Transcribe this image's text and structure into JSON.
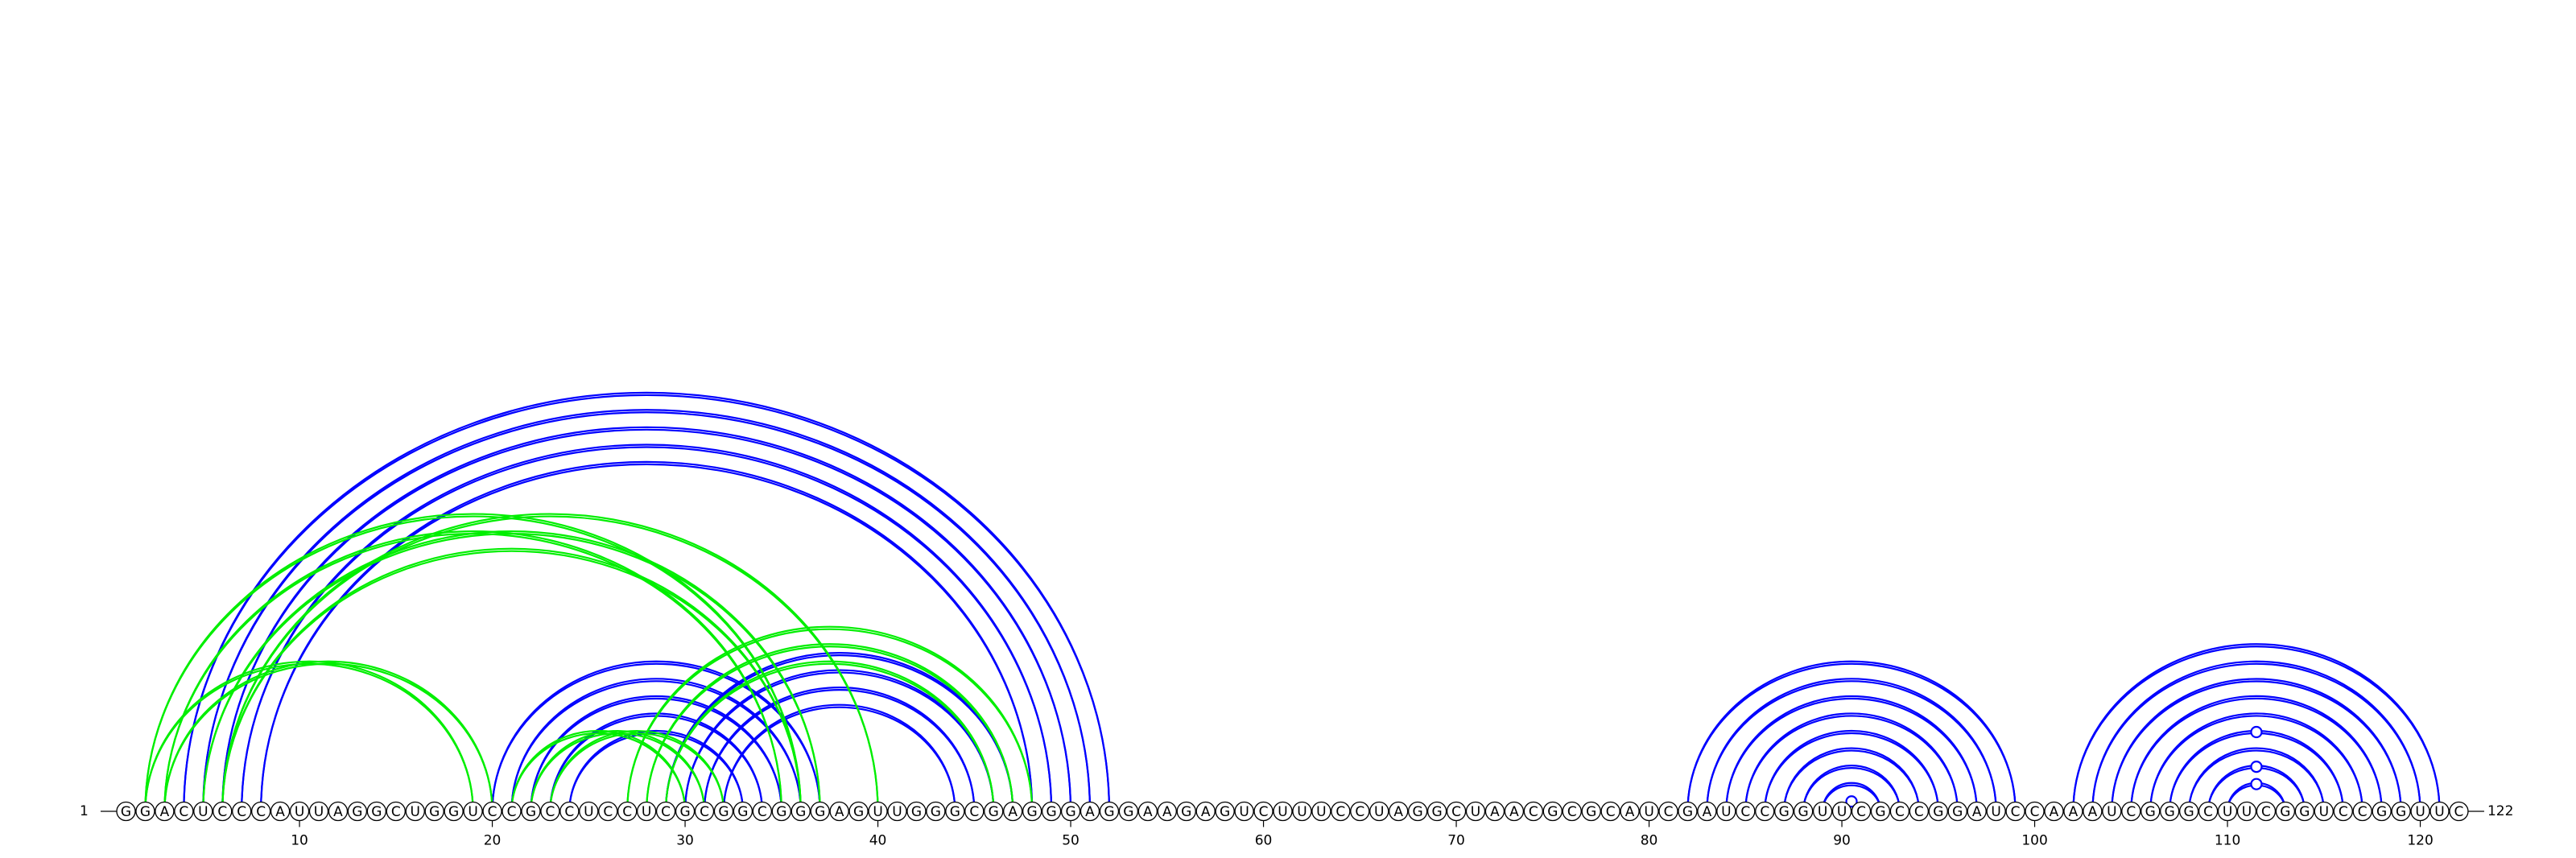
{
  "sequence": "GGACUCCCAUUAGGCUGGUCCGCCUCCUCGCGGCGGGAGUUGGGCGAGGGAGGAAGAGUCUUUCCUAGGCUAACGCGCAUCGAUCCGGUUCGCCGGAUCCAAAUCGGGCUUCGGUCCGGUUC",
  "start_label": "1",
  "end_label": "122",
  "ticks": [
    10,
    20,
    30,
    40,
    50,
    60,
    70,
    80,
    90,
    100,
    110,
    120
  ],
  "colors": {
    "blue": "#0000ff",
    "green": "#00ee00"
  },
  "arc_groups": [
    {
      "color": "blue",
      "pairs": [
        [
          4,
          52
        ],
        [
          5,
          51
        ],
        [
          6,
          50
        ],
        [
          7,
          49
        ],
        [
          8,
          48
        ]
      ]
    },
    {
      "color": "blue",
      "pairs": [
        [
          20,
          37
        ],
        [
          21,
          36
        ],
        [
          22,
          35
        ],
        [
          23,
          34
        ],
        [
          24,
          33
        ]
      ]
    },
    {
      "color": "blue",
      "pairs": [
        [
          29,
          47
        ],
        [
          30,
          46
        ],
        [
          31,
          45
        ],
        [
          32,
          44
        ]
      ]
    },
    {
      "color": "green",
      "pairs": [
        [
          2,
          19
        ],
        [
          3,
          20
        ]
      ]
    },
    {
      "color": "green",
      "pairs": [
        [
          2,
          36
        ],
        [
          3,
          35
        ]
      ]
    },
    {
      "color": "green",
      "pairs": [
        [
          5,
          37
        ],
        [
          6,
          36
        ]
      ]
    },
    {
      "color": "green",
      "pairs": [
        [
          6,
          40
        ]
      ]
    },
    {
      "color": "green",
      "pairs": [
        [
          21,
          30
        ],
        [
          22,
          31
        ],
        [
          23,
          32
        ]
      ]
    },
    {
      "color": "green",
      "pairs": [
        [
          27,
          48
        ],
        [
          28,
          47
        ],
        [
          29,
          46
        ]
      ]
    },
    {
      "color": "blue",
      "pairs": [
        [
          82,
          99
        ],
        [
          83,
          98
        ],
        [
          84,
          97
        ],
        [
          85,
          96
        ],
        [
          86,
          95
        ],
        [
          87,
          94
        ],
        [
          88,
          93
        ],
        [
          89,
          92
        ]
      ]
    },
    {
      "color": "blue",
      "pairs": [
        [
          102,
          121
        ],
        [
          103,
          120
        ],
        [
          104,
          119
        ],
        [
          105,
          118
        ],
        [
          106,
          117
        ],
        [
          107,
          116
        ],
        [
          108,
          115
        ],
        [
          109,
          114
        ],
        [
          110,
          113
        ]
      ]
    }
  ],
  "markers": [
    {
      "color": "blue",
      "i": 90,
      "j": 91
    },
    {
      "color": "blue",
      "i": 107,
      "j": 116
    },
    {
      "color": "blue",
      "i": 109,
      "j": 114
    },
    {
      "color": "blue",
      "i": 110,
      "j": 113
    }
  ]
}
